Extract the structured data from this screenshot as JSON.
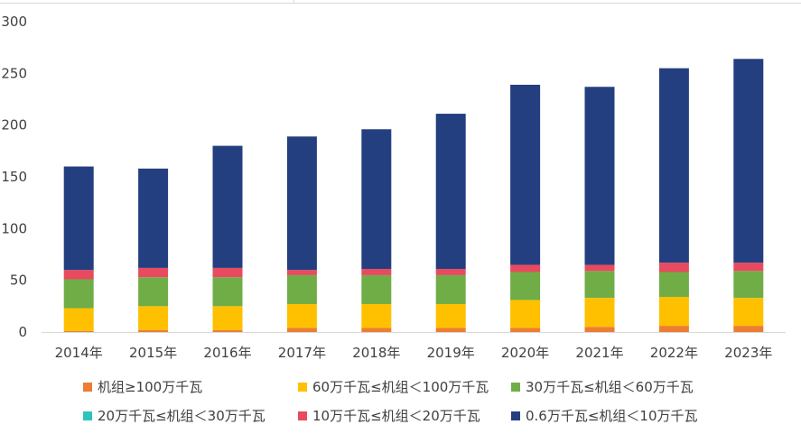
{
  "chart_data": {
    "type": "bar",
    "stacked": true,
    "title": "",
    "xlabel": "",
    "ylabel": "",
    "ylim": [
      0,
      300
    ],
    "yticks": [
      0,
      50,
      100,
      150,
      200,
      250,
      300
    ],
    "grid": false,
    "legend_position": "bottom",
    "categories": [
      "2014年",
      "2015年",
      "2016年",
      "2017年",
      "2018年",
      "2019年",
      "2020年",
      "2021年",
      "2022年",
      "2023年"
    ],
    "series": [
      {
        "name": "机组≥100万千瓦",
        "color": "#ED7D31",
        "values": [
          1,
          2,
          2,
          4,
          4,
          4,
          4,
          5,
          6,
          6
        ]
      },
      {
        "name": "60万千瓦≤机组＜100万千瓦",
        "color": "#FFC000",
        "values": [
          22,
          23,
          23,
          23,
          23,
          23,
          27,
          28,
          28,
          27
        ]
      },
      {
        "name": "30万千瓦≤机组＜60万千瓦",
        "color": "#70AD47",
        "values": [
          28,
          28,
          28,
          28,
          28,
          28,
          27,
          26,
          24,
          26
        ]
      },
      {
        "name": "20万千瓦≤机组＜30万千瓦",
        "color": "#2EC4B6",
        "values": [
          0,
          0,
          0,
          0,
          0,
          0,
          0,
          0,
          0,
          0
        ]
      },
      {
        "name": "10万千瓦≤机组＜20万千瓦",
        "color": "#E84A5F",
        "values": [
          9,
          9,
          9,
          5,
          6,
          6,
          7,
          6,
          9,
          8
        ]
      },
      {
        "name": "0.6万千瓦≤机组＜10万千瓦",
        "color": "#243F7F",
        "values": [
          100,
          96,
          118,
          129,
          135,
          150,
          174,
          172,
          188,
          197
        ]
      }
    ]
  }
}
